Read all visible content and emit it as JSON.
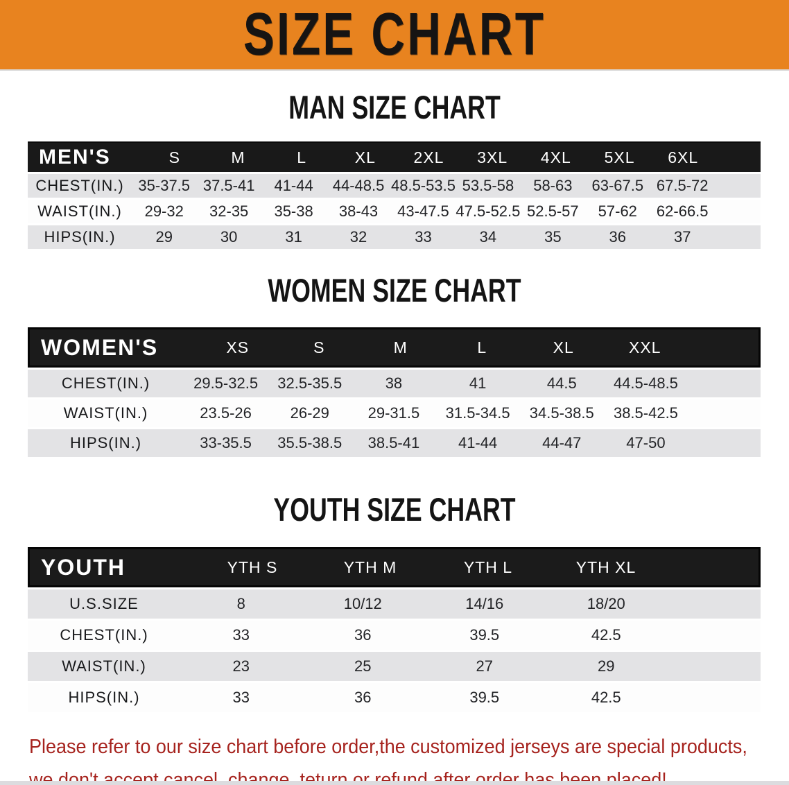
{
  "banner": {
    "title": "SIZE CHART",
    "bg_color": "#e8831f"
  },
  "tables": {
    "men": {
      "heading": "MAN SIZE CHART",
      "header": [
        "MEN'S",
        "S",
        "M",
        "L",
        "XL",
        "2XL",
        "3XL",
        "4XL",
        "5XL",
        "6XL"
      ],
      "rows": [
        [
          "CHEST(IN.)",
          "35-37.5",
          "37.5-41",
          "41-44",
          "44-48.5",
          "48.5-53.5",
          "53.5-58",
          "58-63",
          "63-67.5",
          "67.5-72"
        ],
        [
          "WAIST(IN.)",
          "29-32",
          "32-35",
          "35-38",
          "38-43",
          "43-47.5",
          "47.5-52.5",
          "52.5-57",
          "57-62",
          "62-66.5"
        ],
        [
          "HIPS(IN.)",
          "29",
          "30",
          "31",
          "32",
          "33",
          "34",
          "35",
          "36",
          "37"
        ]
      ]
    },
    "women": {
      "heading": "WOMEN SIZE CHART",
      "header": [
        "WOMEN'S",
        "XS",
        "S",
        "M",
        "L",
        "XL",
        "XXL"
      ],
      "rows": [
        [
          "CHEST(IN.)",
          "29.5-32.5",
          "32.5-35.5",
          "38",
          "41",
          "44.5",
          "44.5-48.5"
        ],
        [
          "WAIST(IN.)",
          "23.5-26",
          "26-29",
          "29-31.5",
          "31.5-34.5",
          "34.5-38.5",
          "38.5-42.5"
        ],
        [
          "HIPS(IN.)",
          "33-35.5",
          "35.5-38.5",
          "38.5-41",
          "41-44",
          "44-47",
          "47-50"
        ]
      ]
    },
    "youth": {
      "heading": "YOUTH SIZE CHART",
      "header": [
        "YOUTH",
        "YTH S",
        "YTH M",
        "YTH L",
        "YTH XL"
      ],
      "rows": [
        [
          "U.S.SIZE",
          "8",
          "10/12",
          "14/16",
          "18/20"
        ],
        [
          "CHEST(IN.)",
          "33",
          "36",
          "39.5",
          "42.5"
        ],
        [
          "WAIST(IN.)",
          "23",
          "25",
          "27",
          "29"
        ],
        [
          "HIPS(IN.)",
          "33",
          "36",
          "39.5",
          "42.5"
        ]
      ]
    }
  },
  "disclaimer": {
    "text_color": "#a6231e",
    "lines": [
      "Please refer to our size chart before order,the customized jerseys are special products,",
      "we don't accept cancel, change, teturn or refund after order has been placed!"
    ]
  },
  "colors": {
    "row_gray": "#e3e3e5",
    "row_white": "#fdfdfd",
    "header_black": "#191919"
  }
}
